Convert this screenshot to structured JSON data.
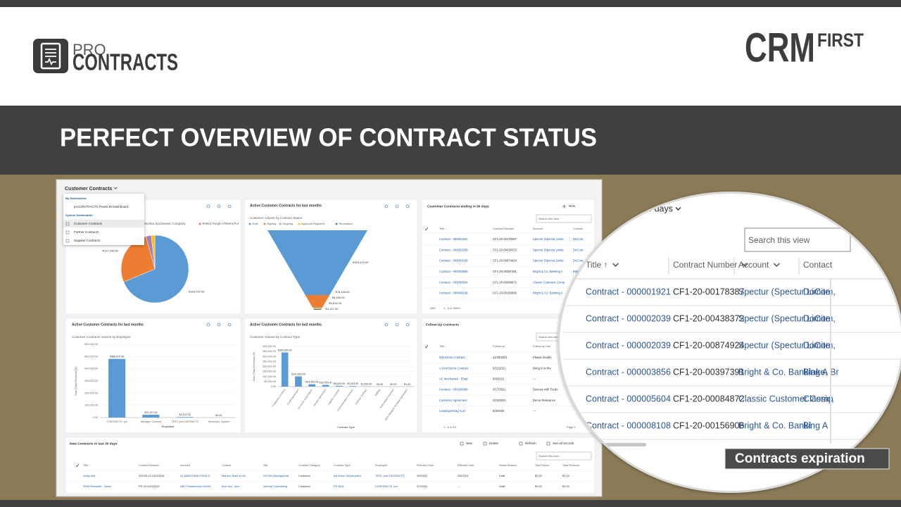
{
  "header": {
    "logo_pro": "PRO",
    "logo_contracts": "CONTRACTS",
    "logo_crm": "CRM",
    "logo_first": "FIRST"
  },
  "banner": {
    "title": "PERFECT OVERVIEW OF CONTRACT STATUS"
  },
  "dashboard": {
    "selector": "Customer Contracts",
    "menu": {
      "my_heading": "My Dashboards",
      "my_items": [
        "proCONTRACTS Power BI Dashboard"
      ],
      "system_heading": "System Dashboards",
      "system_items": [
        "Customer Contracts",
        "Partner Contracts",
        "Supplier Contracts"
      ]
    },
    "pie": {
      "type": "pie",
      "legend": [
        "Columbia Sportswear Company",
        "Teletra Purple (Teletra Pur"
      ],
      "values": [
        323737,
        127239.8,
        12000,
        8000
      ],
      "value_labels": [
        "€323,737.00",
        "€127,239.80",
        null,
        null
      ],
      "colors": [
        "#5b9bd5",
        "#ed7d31",
        "#a480b8",
        "#ffc000"
      ]
    },
    "funnel": {
      "type": "funnel",
      "title": "Active Customer Contracts for last months",
      "subtitle": "Customer Volume by Contract Status",
      "legend": [
        "Draft",
        "Signing",
        "Ongoing",
        "Approval Required",
        "Terminated"
      ],
      "colors": [
        "#5b9bd5",
        "#ed7d31",
        "#a5a5a5",
        "#ffc000",
        "#4472c4"
      ],
      "values": [
        403470,
        76445,
        6000,
        5615,
        4147
      ],
      "value_labels": [
        "€403,470.00",
        "€76,445.00",
        "€6,000.00",
        "€5,615.00",
        "€4,147.00"
      ]
    },
    "contracts_ending": {
      "title": "Customer Contracts ending in 90 days",
      "new": "New",
      "search": "Search this view",
      "columns": [
        "Title ↑",
        "Contract Number",
        "Account",
        "Contact"
      ],
      "rows": [
        [
          "Contract - 000001921",
          "CF1-20-00178387",
          "Spectur (Spectur Limite",
          "DoCom,"
        ],
        [
          "Contract - 000002039",
          "CF1-20-00438372",
          "Spectur (Spectur Limite",
          "DoCom,"
        ],
        [
          "Contract - 000002039",
          "CF1-20-00874924",
          "Spectur (Spectur Limite",
          "DoCom,"
        ],
        [
          "Contract - 000003856",
          "CF1-20-00397391",
          "Bright & Co. Banking A",
          "Blake, Br"
        ],
        [
          "Contract - 000005604",
          "CF1-20-00084872",
          "Classic Customer Comp",
          "Classic,"
        ],
        [
          "Contract - 000008108",
          "CF1-20-00156906",
          "Bright & Co. Banking A",
          "Bl"
        ]
      ],
      "abc": "ABC",
      "footer": "1 - 6 of 5000+"
    },
    "employee_chart": {
      "type": "bar",
      "title": "Active Customer Contracts for last months",
      "subtitle": "Customer Contracts Volume by Employee",
      "y_label": "Sum (Total Revenue) (€)",
      "x_label": "Employee",
      "categories": [
        "CONTRACTS, pro",
        "Manager, Contract",
        "TEST, proCONTRACTS",
        "Developer, System"
      ],
      "values": [
        480470,
        23157,
        4147,
        0
      ],
      "value_labels": [
        "€480,470.00",
        "€23,157.00",
        "€4,147.00",
        "€0.00"
      ],
      "color": "#5b9bd5",
      "ylim": [
        0,
        600000
      ],
      "yticks": [
        {
          "value": 0,
          "label": "0.00"
        },
        {
          "value": 100000,
          "label": "100,000.00"
        },
        {
          "value": 200000,
          "label": "200,000.00"
        },
        {
          "value": 300000,
          "label": "300,000.00"
        },
        {
          "value": 400000,
          "label": "400,000.00"
        },
        {
          "value": 500000,
          "label": "500,000.00"
        },
        {
          "value": 600000,
          "label": "600,000.00"
        }
      ]
    },
    "type_chart": {
      "type": "bar",
      "title": "Active Customer Contracts for last months",
      "subtitle": "Customer Volume by Contract Type",
      "y_label": "Sum (Total Revenue) (€)",
      "x_label": "Contract Type",
      "categories": [
        "Production Contract",
        "Credit Agreement",
        "AA Demo Subscription",
        "Service Agreement",
        "Logistics Contract",
        "Communication Contract",
        "Delivery Contract",
        "Staffing",
        "Subscription Contract",
        "NDA Standard Template Agreement"
      ],
      "values": [
        340000,
        101609,
        23352,
        16750,
        8000,
        5403,
        1830,
        0,
        0,
        0
      ],
      "value_labels": [
        "€340,000.00",
        "€101,609.00",
        "€23,352.00",
        "€16,750.00",
        "€8,000.00",
        "€5,403.00",
        "€1,830.00",
        "€0.00",
        "€0.00",
        "€0.00"
      ],
      "color": "#5b9bd5",
      "ylim": [
        0,
        400000
      ],
      "yticks": [
        {
          "value": 0,
          "label": "0.00"
        },
        {
          "value": 50000,
          "label": "50,000.00"
        },
        {
          "value": 100000,
          "label": "100,000.00"
        },
        {
          "value": 150000,
          "label": "150,000.00"
        },
        {
          "value": 200000,
          "label": "200,000.00"
        },
        {
          "value": 250000,
          "label": "250,000.00"
        },
        {
          "value": 300000,
          "label": "300,000.00"
        },
        {
          "value": 350000,
          "label": "350,000.00"
        },
        {
          "value": 400000,
          "label": "400,000.00"
        }
      ]
    },
    "follow_up": {
      "title": "Follow-Up Contracts",
      "search": "Search this view",
      "columns": [
        "Title ↑",
        "Follow-up",
        "Follow-up Info"
      ],
      "rows": [
        [
          "000 Demo Contract",
          "11/30/2021",
          "Please double"
        ],
        [
          "A First Demo Contract",
          "5/11/2021",
          "Bring it on the"
        ],
        [
          "AC Mechanics - Ehad",
          "8/4/2021",
          "---"
        ],
        [
          "Contract - 000266589",
          "3/17/2021",
          "Discuss with Tecdo"
        ],
        [
          "Customer Agreement",
          "2/23/2021",
          "Demo Relevance"
        ],
        [
          "Leasingvertrag ALD",
          "9/3/2020",
          "---"
        ]
      ],
      "footer": "1 - 6 of 13",
      "page": "Page 1"
    },
    "new_contracts": {
      "title": "New Contracts in last 30 days",
      "actions": [
        "New",
        "Delete",
        "Refresh",
        "See all records"
      ],
      "search": "Search this view",
      "columns": [
        "Title ↑",
        "Contract Number",
        "Account",
        "Contact",
        "Site",
        "Contract Category",
        "Contract Type",
        "Employee",
        "Effective From",
        "Effective Until",
        "Status Reason",
        "Total Expen...",
        "Total Revenue"
      ],
      "rows": [
        [
          "InSky test",
          "DVGW-22-01022216",
          "AL NABOODAH REAL E",
          "Manzur, Badr al Din",
          "DVGW Hauptgeschä",
          "Customer",
          "AA Demo Subscription",
          "TEST, proCONTRACTS",
          "2/9/2022",
          "2/8/2023",
          "Draft",
          "€0.00",
          "€0.00"
        ],
        [
          "RHM Rohstoffe - Demo",
          "PP-22-01022215",
          "ABC Postservices GmbH",
          "Bon Jovi, John",
          "Internal Contracting",
          "Customer",
          "PP NDA",
          "CONTRACTS, pro",
          "2/7/2022",
          "---",
          "Draft",
          "€0.00",
          "€0.00"
        ]
      ]
    }
  },
  "callout": "Contracts expiration"
}
